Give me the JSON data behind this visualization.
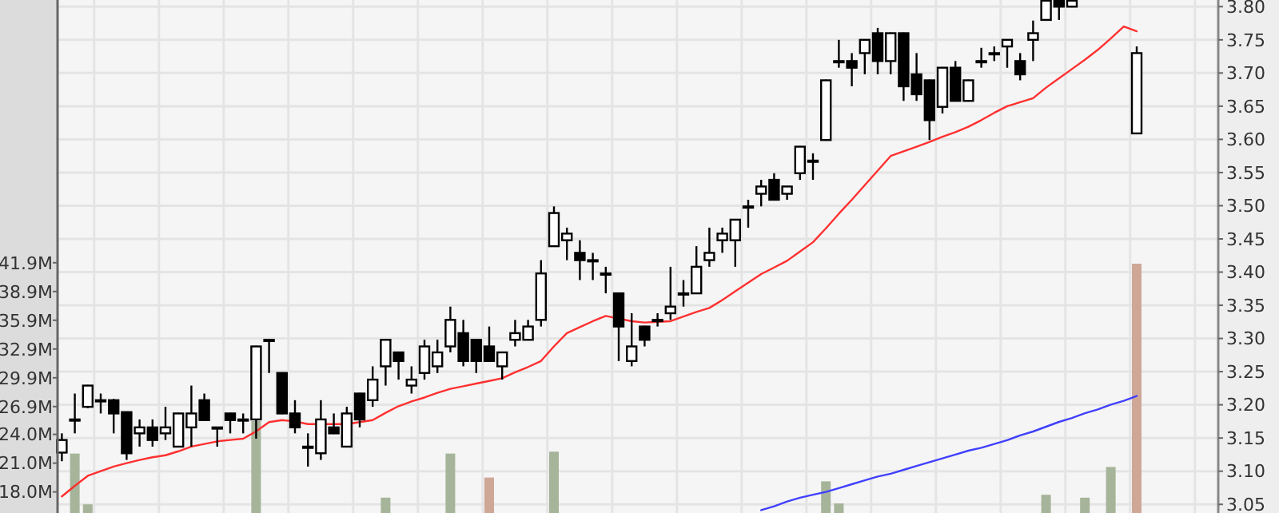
{
  "chart_data": {
    "type": "candlestick",
    "categories": [
      null,
      null,
      null,
      null,
      null,
      null,
      null,
      null,
      null,
      null,
      null,
      null,
      null,
      null,
      null,
      null,
      null,
      null,
      null,
      null,
      null,
      null,
      null,
      null,
      null,
      null,
      null,
      null,
      null,
      null,
      null,
      null,
      null,
      null,
      null,
      null,
      null,
      null,
      null,
      null,
      null,
      null,
      null,
      null,
      null,
      null,
      null,
      null,
      null,
      null,
      null,
      null,
      null,
      null,
      null,
      null,
      null,
      null,
      null,
      null,
      null,
      null,
      null,
      null,
      null,
      null,
      null,
      null,
      null,
      null,
      null,
      null,
      null,
      null,
      null,
      null,
      null,
      null,
      null,
      null,
      null,
      null,
      null,
      null
    ],
    "ohlc": [
      [
        3.128,
        3.157,
        3.115,
        3.147
      ],
      [
        3.178,
        3.217,
        3.157,
        3.178
      ],
      [
        3.197,
        3.23,
        3.195,
        3.229
      ],
      [
        3.207,
        3.217,
        3.187,
        3.207
      ],
      [
        3.207,
        3.209,
        3.157,
        3.187
      ],
      [
        3.189,
        3.19,
        3.117,
        3.127
      ],
      [
        3.157,
        3.178,
        3.137,
        3.166
      ],
      [
        3.166,
        3.178,
        3.137,
        3.147
      ],
      [
        3.157,
        3.197,
        3.147,
        3.166
      ],
      [
        3.137,
        3.188,
        3.136,
        3.187
      ],
      [
        3.166,
        3.229,
        3.137,
        3.187
      ],
      [
        3.207,
        3.217,
        3.176,
        3.177
      ],
      [
        3.166,
        3.167,
        3.137,
        3.166
      ],
      [
        3.187,
        3.188,
        3.157,
        3.177
      ],
      [
        3.178,
        3.187,
        3.157,
        3.178
      ],
      [
        3.178,
        3.289,
        3.149,
        3.288
      ],
      [
        3.298,
        3.298,
        3.248,
        3.298
      ],
      [
        3.248,
        3.249,
        3.186,
        3.187
      ],
      [
        3.187,
        3.207,
        3.157,
        3.166
      ],
      [
        3.137,
        3.157,
        3.107,
        3.137
      ],
      [
        3.127,
        3.207,
        3.117,
        3.178
      ],
      [
        3.166,
        3.187,
        3.156,
        3.157
      ],
      [
        3.137,
        3.197,
        3.136,
        3.187
      ],
      [
        3.217,
        3.218,
        3.166,
        3.178
      ],
      [
        3.207,
        3.258,
        3.197,
        3.238
      ],
      [
        3.258,
        3.299,
        3.229,
        3.298
      ],
      [
        3.279,
        3.28,
        3.238,
        3.266
      ],
      [
        3.229,
        3.258,
        3.217,
        3.238
      ],
      [
        3.248,
        3.298,
        3.238,
        3.288
      ],
      [
        3.258,
        3.298,
        3.248,
        3.279
      ],
      [
        3.288,
        3.348,
        3.279,
        3.328
      ],
      [
        3.308,
        3.328,
        3.258,
        3.266
      ],
      [
        3.298,
        3.299,
        3.248,
        3.266
      ],
      [
        3.288,
        3.318,
        3.265,
        3.266
      ],
      [
        3.258,
        3.28,
        3.238,
        3.279
      ],
      [
        3.298,
        3.328,
        3.288,
        3.308
      ],
      [
        3.298,
        3.328,
        3.297,
        3.318
      ],
      [
        3.328,
        3.418,
        3.318,
        3.398
      ],
      [
        3.439,
        3.499,
        3.438,
        3.489
      ],
      [
        3.448,
        3.467,
        3.418,
        3.458
      ],
      [
        3.429,
        3.448,
        3.388,
        3.418
      ],
      [
        3.418,
        3.429,
        3.388,
        3.418
      ],
      [
        3.398,
        3.408,
        3.368,
        3.398
      ],
      [
        3.368,
        3.369,
        3.266,
        3.318
      ],
      [
        3.266,
        3.338,
        3.258,
        3.288
      ],
      [
        3.318,
        3.319,
        3.288,
        3.298
      ],
      [
        3.328,
        3.338,
        3.318,
        3.328
      ],
      [
        3.338,
        3.408,
        3.328,
        3.348
      ],
      [
        3.368,
        3.388,
        3.348,
        3.368
      ],
      [
        3.368,
        3.439,
        3.367,
        3.408
      ],
      [
        3.418,
        3.467,
        3.408,
        3.429
      ],
      [
        3.448,
        3.467,
        3.429,
        3.458
      ],
      [
        3.448,
        3.48,
        3.408,
        3.479
      ],
      [
        3.499,
        3.509,
        3.467,
        3.499
      ],
      [
        3.518,
        3.539,
        3.499,
        3.529
      ],
      [
        3.539,
        3.549,
        3.508,
        3.509
      ],
      [
        3.518,
        3.53,
        3.509,
        3.529
      ],
      [
        3.549,
        3.59,
        3.539,
        3.589
      ],
      [
        3.568,
        3.579,
        3.539,
        3.568
      ],
      [
        3.599,
        3.69,
        3.598,
        3.689
      ],
      [
        3.718,
        3.75,
        3.708,
        3.718
      ],
      [
        3.718,
        3.73,
        3.68,
        3.708
      ],
      [
        3.73,
        3.751,
        3.698,
        3.75
      ],
      [
        3.76,
        3.768,
        3.698,
        3.718
      ],
      [
        3.718,
        3.761,
        3.698,
        3.76
      ],
      [
        3.76,
        3.761,
        3.658,
        3.68
      ],
      [
        3.698,
        3.73,
        3.658,
        3.668
      ],
      [
        3.689,
        3.69,
        3.599,
        3.629
      ],
      [
        3.649,
        3.709,
        3.639,
        3.708
      ],
      [
        3.708,
        3.718,
        3.657,
        3.658
      ],
      [
        3.658,
        3.69,
        3.657,
        3.689
      ],
      [
        3.718,
        3.738,
        3.708,
        3.718
      ],
      [
        3.73,
        3.74,
        3.718,
        3.73
      ],
      [
        3.74,
        3.751,
        3.708,
        3.75
      ],
      [
        3.718,
        3.73,
        3.689,
        3.698
      ],
      [
        3.75,
        3.779,
        3.718,
        3.76
      ],
      [
        3.78,
        3.809,
        3.779,
        3.809
      ],
      [
        3.809,
        3.809,
        3.78,
        3.8
      ],
      [
        3.8,
        3.809,
        3.799,
        3.809
      ],
      null,
      null,
      null,
      null,
      [
        3.609,
        3.74,
        3.608,
        3.73
      ]
    ],
    "ylim": [
      3.037,
      3.81
    ],
    "yticks": [
      {
        "value": 3.05,
        "label": "3.05"
      },
      {
        "value": 3.1,
        "label": "3.10"
      },
      {
        "value": 3.15,
        "label": "3.15"
      },
      {
        "value": 3.2,
        "label": "3.20"
      },
      {
        "value": 3.25,
        "label": "3.25"
      },
      {
        "value": 3.3,
        "label": "3.30"
      },
      {
        "value": 3.35,
        "label": "3.35"
      },
      {
        "value": 3.4,
        "label": "3.40"
      },
      {
        "value": 3.45,
        "label": "3.45"
      },
      {
        "value": 3.5,
        "label": "3.50"
      },
      {
        "value": 3.55,
        "label": "3.55"
      },
      {
        "value": 3.6,
        "label": "3.60"
      },
      {
        "value": 3.65,
        "label": "3.65"
      },
      {
        "value": 3.7,
        "label": "3.70"
      },
      {
        "value": 3.75,
        "label": "3.75"
      },
      {
        "value": 3.8,
        "label": "3.80"
      }
    ],
    "y2lim": [
      15.8,
      69.3
    ],
    "y2ticks": [
      {
        "value": 18,
        "label": "18.0M"
      },
      {
        "value": 21,
        "label": "21.0M"
      },
      {
        "value": 24,
        "label": "24.0M"
      },
      {
        "value": 26.9,
        "label": "26.9M"
      },
      {
        "value": 29.9,
        "label": "29.9M"
      },
      {
        "value": 32.9,
        "label": "32.9M"
      },
      {
        "value": 35.9,
        "label": "35.9M"
      },
      {
        "value": 38.9,
        "label": "38.9M"
      },
      {
        "value": 41.9,
        "label": "41.9M"
      }
    ],
    "grid": true,
    "series": [
      {
        "type": "bar",
        "axis": "y2",
        "color": "#a6b49a",
        "values": [
          null,
          22.0,
          16.7,
          null,
          null,
          null,
          null,
          null,
          null,
          null,
          null,
          null,
          null,
          null,
          null,
          25.4,
          null,
          null,
          null,
          null,
          null,
          null,
          null,
          null,
          null,
          17.4,
          null,
          null,
          null,
          null,
          22.0,
          null,
          null,
          null,
          null,
          null,
          null,
          null,
          22.2,
          null,
          null,
          null,
          null,
          null,
          null,
          null,
          null,
          null,
          null,
          null,
          null,
          null,
          null,
          null,
          null,
          null,
          null,
          null,
          null,
          19.1,
          16.8,
          null,
          null,
          null,
          null,
          null,
          null,
          null,
          null,
          null,
          null,
          null,
          null,
          null,
          null,
          null,
          17.7,
          null,
          null,
          17.4,
          null,
          20.6,
          null,
          null
        ]
      },
      {
        "type": "bar",
        "axis": "y2",
        "color": "#cfa797",
        "values": [
          null,
          null,
          null,
          null,
          null,
          null,
          null,
          null,
          null,
          null,
          null,
          null,
          null,
          null,
          null,
          null,
          null,
          null,
          null,
          null,
          null,
          null,
          null,
          null,
          null,
          null,
          null,
          null,
          null,
          null,
          null,
          null,
          null,
          19.5,
          null,
          null,
          null,
          null,
          null,
          null,
          null,
          null,
          null,
          null,
          null,
          null,
          null,
          null,
          null,
          null,
          null,
          null,
          null,
          null,
          null,
          null,
          null,
          null,
          null,
          null,
          null,
          null,
          null,
          null,
          null,
          null,
          null,
          null,
          null,
          null,
          null,
          null,
          null,
          null,
          null,
          null,
          null,
          null,
          null,
          null,
          null,
          null,
          null,
          41.8
        ]
      },
      {
        "type": "line",
        "color": "#ff3030",
        "values": [
          3.062,
          3.078,
          3.093,
          3.1,
          3.107,
          3.112,
          3.117,
          3.121,
          3.124,
          3.13,
          3.137,
          3.141,
          3.145,
          3.147,
          3.149,
          3.16,
          3.174,
          3.177,
          3.175,
          3.171,
          3.171,
          3.171,
          3.171,
          3.174,
          3.177,
          3.188,
          3.198,
          3.205,
          3.211,
          3.218,
          3.224,
          3.228,
          3.232,
          3.236,
          3.24,
          3.249,
          3.257,
          3.266,
          3.288,
          3.308,
          3.317,
          3.326,
          3.334,
          3.33,
          3.326,
          3.324,
          3.325,
          3.326,
          3.333,
          3.34,
          3.346,
          3.358,
          3.371,
          3.384,
          3.397,
          3.407,
          3.417,
          3.431,
          3.445,
          3.466,
          3.488,
          3.509,
          3.531,
          3.553,
          3.575,
          3.582,
          3.589,
          3.596,
          3.604,
          3.611,
          3.619,
          3.629,
          3.64,
          3.65,
          3.656,
          3.662,
          3.678,
          3.692,
          3.706,
          3.72,
          3.735,
          3.752,
          3.77,
          3.763
        ]
      },
      {
        "type": "line",
        "axis": "y2",
        "color": "#4040ff",
        "values": [
          null,
          null,
          null,
          null,
          null,
          null,
          null,
          null,
          null,
          null,
          null,
          null,
          null,
          null,
          null,
          null,
          null,
          null,
          null,
          null,
          null,
          null,
          null,
          null,
          null,
          null,
          null,
          null,
          null,
          null,
          null,
          null,
          null,
          null,
          null,
          null,
          null,
          null,
          null,
          null,
          null,
          null,
          null,
          null,
          null,
          null,
          null,
          null,
          null,
          null,
          null,
          null,
          null,
          null,
          16.1,
          16.5,
          17.0,
          17.4,
          17.7,
          18.0,
          18.4,
          18.8,
          19.2,
          19.6,
          19.9,
          20.3,
          20.7,
          21.1,
          21.5,
          21.9,
          22.3,
          22.6,
          23.0,
          23.4,
          23.9,
          24.3,
          24.8,
          25.3,
          25.7,
          26.2,
          26.6,
          27.1,
          27.5,
          28.0
        ]
      }
    ]
  }
}
